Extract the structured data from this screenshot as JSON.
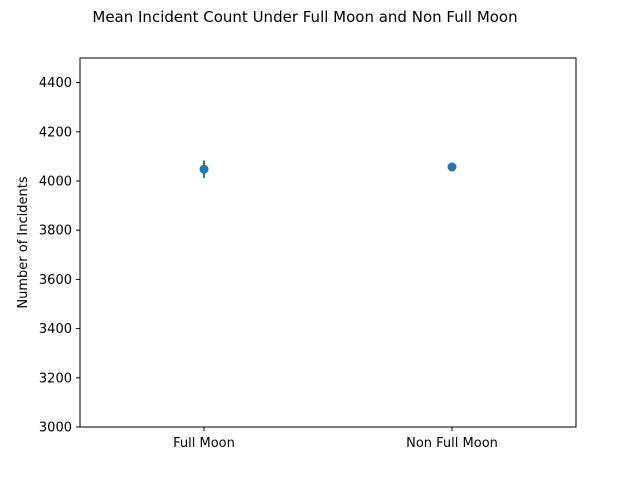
{
  "chart_data": {
    "type": "scatter",
    "title": "Mean Incident Count Under Full Moon and Non Full Moon",
    "xlabel": "",
    "ylabel": "Number of Incidents",
    "categories": [
      "Full Moon",
      "Non Full Moon"
    ],
    "values": [
      4048,
      4057
    ],
    "error": [
      35,
      8
    ],
    "ylim": [
      3000,
      4500
    ],
    "yticks": [
      3000,
      3200,
      3400,
      3600,
      3800,
      4000,
      4200,
      4400
    ],
    "grid": false,
    "color": "#1f77b4"
  }
}
